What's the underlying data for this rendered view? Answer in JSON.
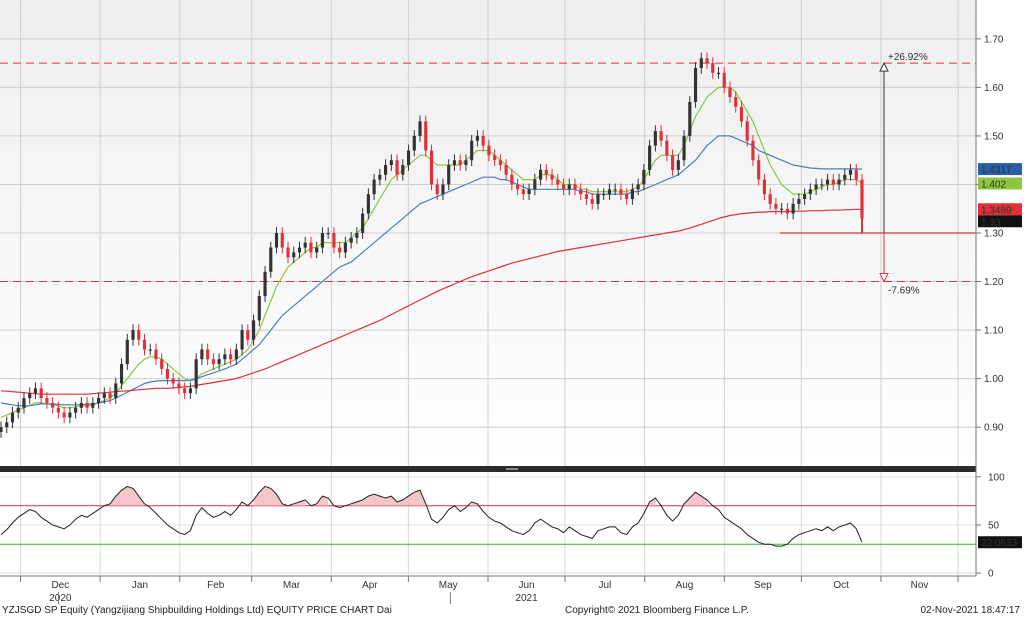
{
  "footer": {
    "left": "YZJSGD SP Equity (Yangzijiang Shipbuilding Holdings Ltd) EQUITY PRICE CHART  Dai",
    "center": "Copyright© 2021 Bloomberg Finance L.P.",
    "right": "02-Nov-2021 18:47:17"
  },
  "colors": {
    "up": "#333333",
    "down": "#e0303a",
    "ma_short": "#8cc63f",
    "ma_mid": "#4a7fc1",
    "ma_long": "#e0303a",
    "rsi": "#222222",
    "overbought": "#e0303a",
    "oversold": "#2fb82f"
  },
  "chart_data": [
    {
      "type": "candlestick",
      "title": "",
      "yticks": [
        "0.90",
        "1.00",
        "1.10",
        "1.20",
        "1.30",
        "1.40",
        "1.50",
        "1.60",
        "1.70"
      ],
      "ylim": [
        0.82,
        1.78
      ],
      "xlim": [
        "2020-11-23",
        "2021-12-08"
      ],
      "x_month_labels": [
        "Dec",
        "Jan",
        "Feb",
        "Mar",
        "Apr",
        "May",
        "Jun",
        "Jul",
        "Aug",
        "Sep",
        "Oct",
        "Nov"
      ],
      "x_year_labels": [
        {
          "label": "2020",
          "month": "Dec"
        },
        {
          "label": "2021",
          "month": "Jun"
        }
      ],
      "candle_closes": [
        0.9,
        0.91,
        0.93,
        0.94,
        0.96,
        0.97,
        0.98,
        0.96,
        0.95,
        0.94,
        0.93,
        0.92,
        0.93,
        0.94,
        0.95,
        0.94,
        0.95,
        0.96,
        0.97,
        0.96,
        0.99,
        1.03,
        1.08,
        1.1,
        1.08,
        1.06,
        1.06,
        1.04,
        1.02,
        1.0,
        0.99,
        0.98,
        0.97,
        0.98,
        1.04,
        1.06,
        1.04,
        1.03,
        1.04,
        1.05,
        1.04,
        1.06,
        1.1,
        1.08,
        1.12,
        1.17,
        1.22,
        1.27,
        1.3,
        1.27,
        1.25,
        1.26,
        1.27,
        1.28,
        1.26,
        1.27,
        1.3,
        1.3,
        1.27,
        1.26,
        1.28,
        1.29,
        1.3,
        1.34,
        1.38,
        1.41,
        1.42,
        1.44,
        1.45,
        1.42,
        1.44,
        1.47,
        1.5,
        1.53,
        1.47,
        1.4,
        1.38,
        1.4,
        1.44,
        1.45,
        1.44,
        1.45,
        1.49,
        1.5,
        1.48,
        1.46,
        1.45,
        1.44,
        1.42,
        1.4,
        1.39,
        1.38,
        1.39,
        1.41,
        1.43,
        1.42,
        1.41,
        1.4,
        1.39,
        1.4,
        1.39,
        1.38,
        1.37,
        1.36,
        1.38,
        1.38,
        1.39,
        1.39,
        1.38,
        1.37,
        1.39,
        1.4,
        1.43,
        1.48,
        1.51,
        1.49,
        1.46,
        1.43,
        1.45,
        1.5,
        1.57,
        1.64,
        1.66,
        1.65,
        1.63,
        1.63,
        1.6,
        1.58,
        1.56,
        1.53,
        1.49,
        1.45,
        1.41,
        1.38,
        1.36,
        1.35,
        1.35,
        1.34,
        1.36,
        1.37,
        1.38,
        1.39,
        1.4,
        1.4,
        1.41,
        1.4,
        1.41,
        1.42,
        1.43,
        1.41,
        1.33
      ],
      "series": [
        {
          "name": "",
          "role": "short moving average",
          "values": [
            0.92,
            0.925,
            0.93,
            0.935,
            0.94,
            0.945,
            0.95,
            0.95,
            0.948,
            0.946,
            0.944,
            0.94,
            0.94,
            0.942,
            0.944,
            0.944,
            0.946,
            0.95,
            0.955,
            0.96,
            0.97,
            0.985,
            1.0,
            1.015,
            1.03,
            1.04,
            1.045,
            1.045,
            1.04,
            1.03,
            1.02,
            1.01,
            1.0,
            0.995,
            1.0,
            1.01,
            1.015,
            1.02,
            1.025,
            1.03,
            1.035,
            1.04,
            1.05,
            1.06,
            1.08,
            1.1,
            1.13,
            1.16,
            1.19,
            1.21,
            1.23,
            1.24,
            1.25,
            1.26,
            1.27,
            1.27,
            1.28,
            1.28,
            1.28,
            1.28,
            1.28,
            1.29,
            1.3,
            1.31,
            1.33,
            1.35,
            1.37,
            1.39,
            1.41,
            1.42,
            1.43,
            1.44,
            1.45,
            1.46,
            1.46,
            1.45,
            1.44,
            1.44,
            1.44,
            1.44,
            1.44,
            1.45,
            1.46,
            1.47,
            1.47,
            1.47,
            1.46,
            1.45,
            1.44,
            1.43,
            1.42,
            1.41,
            1.41,
            1.41,
            1.42,
            1.42,
            1.42,
            1.41,
            1.4,
            1.4,
            1.4,
            1.39,
            1.39,
            1.385,
            1.385,
            1.385,
            1.385,
            1.385,
            1.385,
            1.385,
            1.39,
            1.395,
            1.41,
            1.43,
            1.45,
            1.46,
            1.46,
            1.46,
            1.46,
            1.48,
            1.51,
            1.54,
            1.56,
            1.58,
            1.59,
            1.6,
            1.6,
            1.6,
            1.59,
            1.57,
            1.55,
            1.53,
            1.5,
            1.47,
            1.44,
            1.42,
            1.4,
            1.39,
            1.38,
            1.38,
            1.38,
            1.385,
            1.39,
            1.395,
            1.4,
            1.4,
            1.405,
            1.41,
            1.41,
            1.41,
            1.402
          ]
        },
        {
          "name": "",
          "role": "medium moving average",
          "values": [
            0.95,
            0.948,
            0.946,
            0.944,
            0.944,
            0.944,
            0.946,
            0.948,
            0.948,
            0.948,
            0.947,
            0.946,
            0.946,
            0.946,
            0.946,
            0.947,
            0.948,
            0.95,
            0.952,
            0.955,
            0.96,
            0.966,
            0.972,
            0.978,
            0.984,
            0.99,
            0.993,
            0.995,
            0.996,
            0.996,
            0.996,
            0.996,
            0.996,
            0.997,
            1.0,
            1.004,
            1.008,
            1.012,
            1.016,
            1.02,
            1.025,
            1.03,
            1.04,
            1.05,
            1.06,
            1.07,
            1.085,
            1.1,
            1.115,
            1.13,
            1.14,
            1.15,
            1.16,
            1.17,
            1.18,
            1.19,
            1.2,
            1.21,
            1.22,
            1.23,
            1.235,
            1.24,
            1.25,
            1.26,
            1.27,
            1.28,
            1.29,
            1.3,
            1.31,
            1.32,
            1.33,
            1.34,
            1.35,
            1.36,
            1.365,
            1.37,
            1.375,
            1.38,
            1.385,
            1.39,
            1.395,
            1.4,
            1.405,
            1.41,
            1.415,
            1.415,
            1.415,
            1.41,
            1.41,
            1.405,
            1.4,
            1.395,
            1.39,
            1.39,
            1.39,
            1.39,
            1.39,
            1.39,
            1.39,
            1.39,
            1.39,
            1.385,
            1.385,
            1.38,
            1.38,
            1.38,
            1.38,
            1.38,
            1.38,
            1.38,
            1.385,
            1.385,
            1.39,
            1.395,
            1.4,
            1.405,
            1.41,
            1.415,
            1.42,
            1.43,
            1.44,
            1.45,
            1.465,
            1.48,
            1.49,
            1.5,
            1.5,
            1.5,
            1.495,
            1.49,
            1.485,
            1.48,
            1.47,
            1.465,
            1.46,
            1.455,
            1.45,
            1.445,
            1.44,
            1.438,
            1.436,
            1.434,
            1.433,
            1.432,
            1.432,
            1.432,
            1.432,
            1.432,
            1.432,
            1.432,
            1.4317
          ]
        },
        {
          "name": "",
          "role": "long moving average",
          "values": [
            0.975,
            0.974,
            0.973,
            0.972,
            0.971,
            0.97,
            0.969,
            0.968,
            0.968,
            0.968,
            0.968,
            0.968,
            0.968,
            0.968,
            0.968,
            0.968,
            0.969,
            0.97,
            0.971,
            0.972,
            0.973,
            0.974,
            0.975,
            0.976,
            0.977,
            0.978,
            0.979,
            0.98,
            0.98,
            0.98,
            0.981,
            0.982,
            0.983,
            0.984,
            0.986,
            0.988,
            0.99,
            0.992,
            0.994,
            0.996,
            0.998,
            1.0,
            1.004,
            1.008,
            1.012,
            1.016,
            1.02,
            1.025,
            1.03,
            1.035,
            1.04,
            1.045,
            1.05,
            1.055,
            1.06,
            1.065,
            1.07,
            1.075,
            1.08,
            1.085,
            1.09,
            1.095,
            1.1,
            1.105,
            1.11,
            1.115,
            1.12,
            1.126,
            1.132,
            1.138,
            1.144,
            1.15,
            1.156,
            1.162,
            1.168,
            1.174,
            1.18,
            1.185,
            1.19,
            1.195,
            1.2,
            1.205,
            1.21,
            1.214,
            1.218,
            1.222,
            1.226,
            1.23,
            1.234,
            1.238,
            1.241,
            1.244,
            1.247,
            1.25,
            1.253,
            1.256,
            1.259,
            1.262,
            1.264,
            1.266,
            1.268,
            1.27,
            1.272,
            1.274,
            1.276,
            1.278,
            1.28,
            1.282,
            1.284,
            1.286,
            1.288,
            1.29,
            1.292,
            1.294,
            1.296,
            1.298,
            1.3,
            1.302,
            1.304,
            1.307,
            1.31,
            1.314,
            1.318,
            1.322,
            1.326,
            1.33,
            1.333,
            1.336,
            1.338,
            1.34,
            1.341,
            1.342,
            1.343,
            1.343,
            1.344,
            1.344,
            1.344,
            1.344,
            1.345,
            1.345,
            1.345,
            1.346,
            1.346,
            1.346,
            1.347,
            1.347,
            1.347,
            1.348,
            1.348,
            1.3489,
            1.3489
          ]
        }
      ],
      "last_value_tags": [
        {
          "label": "1.4317",
          "value": 1.4317,
          "bg": "#2b5ea7",
          "fg": "#ffffff"
        },
        {
          "label": "1.402",
          "value": 1.402,
          "bg": "#8cc63f",
          "fg": "#000000"
        },
        {
          "label": "1.3489",
          "value": 1.3489,
          "bg": "#e0303a",
          "fg": "#ffffff"
        },
        {
          "label": "1.33",
          "value": 1.33,
          "bg": "#111111",
          "fg": "#ffffff"
        }
      ],
      "hlines": [
        {
          "value": 1.65,
          "style": "dashed",
          "color": "#e0303a"
        },
        {
          "value": 1.2,
          "style": "dashed",
          "color": "#e0303a"
        },
        {
          "value": 1.3,
          "style": "solid",
          "color": "#e0303a"
        }
      ],
      "range_arrow": {
        "from": 1.3,
        "to_up": 1.65,
        "to_down": 1.2,
        "up_label": "+26.92%",
        "down_label": "-7.69%"
      }
    },
    {
      "type": "line",
      "title": "",
      "yticks": [
        "0",
        "50",
        "100"
      ],
      "ylim": [
        -3,
        105
      ],
      "series": [
        {
          "name": "",
          "values": [
            40,
            45,
            52,
            58,
            62,
            66,
            64,
            58,
            54,
            50,
            48,
            46,
            50,
            56,
            60,
            58,
            62,
            66,
            70,
            72,
            80,
            86,
            90,
            88,
            80,
            72,
            68,
            62,
            56,
            50,
            46,
            42,
            40,
            44,
            60,
            68,
            62,
            58,
            60,
            64,
            60,
            66,
            74,
            70,
            76,
            84,
            90,
            88,
            82,
            72,
            70,
            72,
            74,
            76,
            70,
            72,
            80,
            78,
            70,
            68,
            70,
            72,
            74,
            76,
            80,
            82,
            80,
            78,
            80,
            74,
            76,
            80,
            84,
            86,
            72,
            56,
            52,
            58,
            66,
            70,
            64,
            68,
            74,
            72,
            64,
            58,
            54,
            52,
            48,
            44,
            42,
            40,
            44,
            52,
            56,
            52,
            48,
            46,
            42,
            48,
            44,
            40,
            38,
            36,
            44,
            46,
            48,
            48,
            42,
            40,
            48,
            52,
            62,
            74,
            78,
            70,
            60,
            54,
            60,
            72,
            78,
            84,
            80,
            76,
            70,
            66,
            58,
            54,
            50,
            46,
            40,
            36,
            32,
            30,
            30,
            28,
            28,
            30,
            36,
            40,
            42,
            44,
            46,
            44,
            48,
            44,
            48,
            50,
            52,
            46,
            32.0633
          ]
        }
      ],
      "hlines": [
        {
          "value": 70,
          "color": "#e0303a"
        },
        {
          "value": 30,
          "color": "#2fb82f"
        }
      ],
      "last_value_tag": {
        "label": "32.0633",
        "value": 32.0633
      }
    }
  ]
}
